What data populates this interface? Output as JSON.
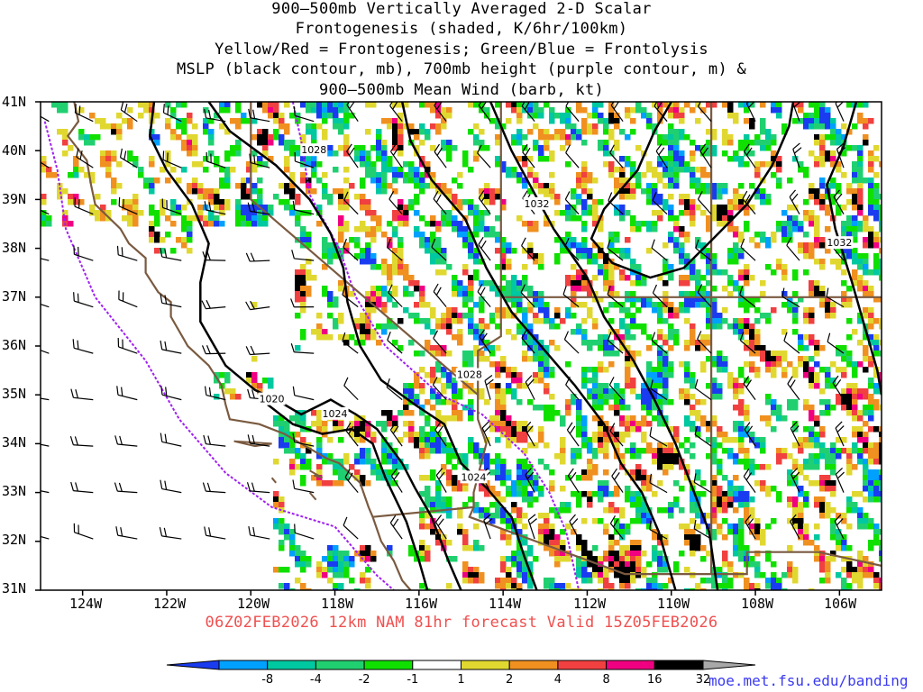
{
  "title_lines": [
    "900–500mb Vertically Averaged 2-D Scalar",
    "Frontogenesis (shaded, K/6hr/100km)",
    "Yellow/Red = Frontogenesis;  Green/Blue = Frontolysis",
    "MSLP (black contour, mb), 700mb height (purple contour, m) &",
    "900–500mb Mean Wind (barb, kt)"
  ],
  "lat_labels": [
    "41N",
    "40N",
    "39N",
    "38N",
    "37N",
    "36N",
    "35N",
    "34N",
    "33N",
    "32N",
    "31N"
  ],
  "lon_labels": [
    "124W",
    "122W",
    "120W",
    "118W",
    "116W",
    "114W",
    "112W",
    "110W",
    "108W",
    "106W"
  ],
  "map_extent": {
    "lon_min": -125,
    "lon_max": -105,
    "lat_min": 31,
    "lat_max": 41
  },
  "isobar_labels": [
    {
      "text": "1028",
      "lon": -118.5,
      "lat": 40.0
    },
    {
      "text": "1032",
      "lon": -113.2,
      "lat": 38.9
    },
    {
      "text": "1032",
      "lon": -106.0,
      "lat": 38.1
    },
    {
      "text": "1028",
      "lon": -114.8,
      "lat": 35.4
    },
    {
      "text": "1020",
      "lon": -119.5,
      "lat": 34.9
    },
    {
      "text": "1024",
      "lon": -118.0,
      "lat": 34.6
    },
    {
      "text": "1024",
      "lon": -114.7,
      "lat": 33.3
    }
  ],
  "footer": "06Z02FEB2026 12km NAM 81hr forecast Valid 15Z05FEB2026",
  "colorbar": {
    "ticks": [
      "-8",
      "-4",
      "-2",
      "-1",
      "1",
      "2",
      "4",
      "8",
      "16",
      "32"
    ],
    "colors": [
      "#1a3cf0",
      "#00a0ff",
      "#00c8a0",
      "#20d070",
      "#10e000",
      "#ffffff",
      "#e0d830",
      "#f09020",
      "#f04040",
      "#f00080",
      "#000000",
      "#a8a8a8"
    ]
  },
  "credit": "moe.met.fsu.edu/banding"
}
